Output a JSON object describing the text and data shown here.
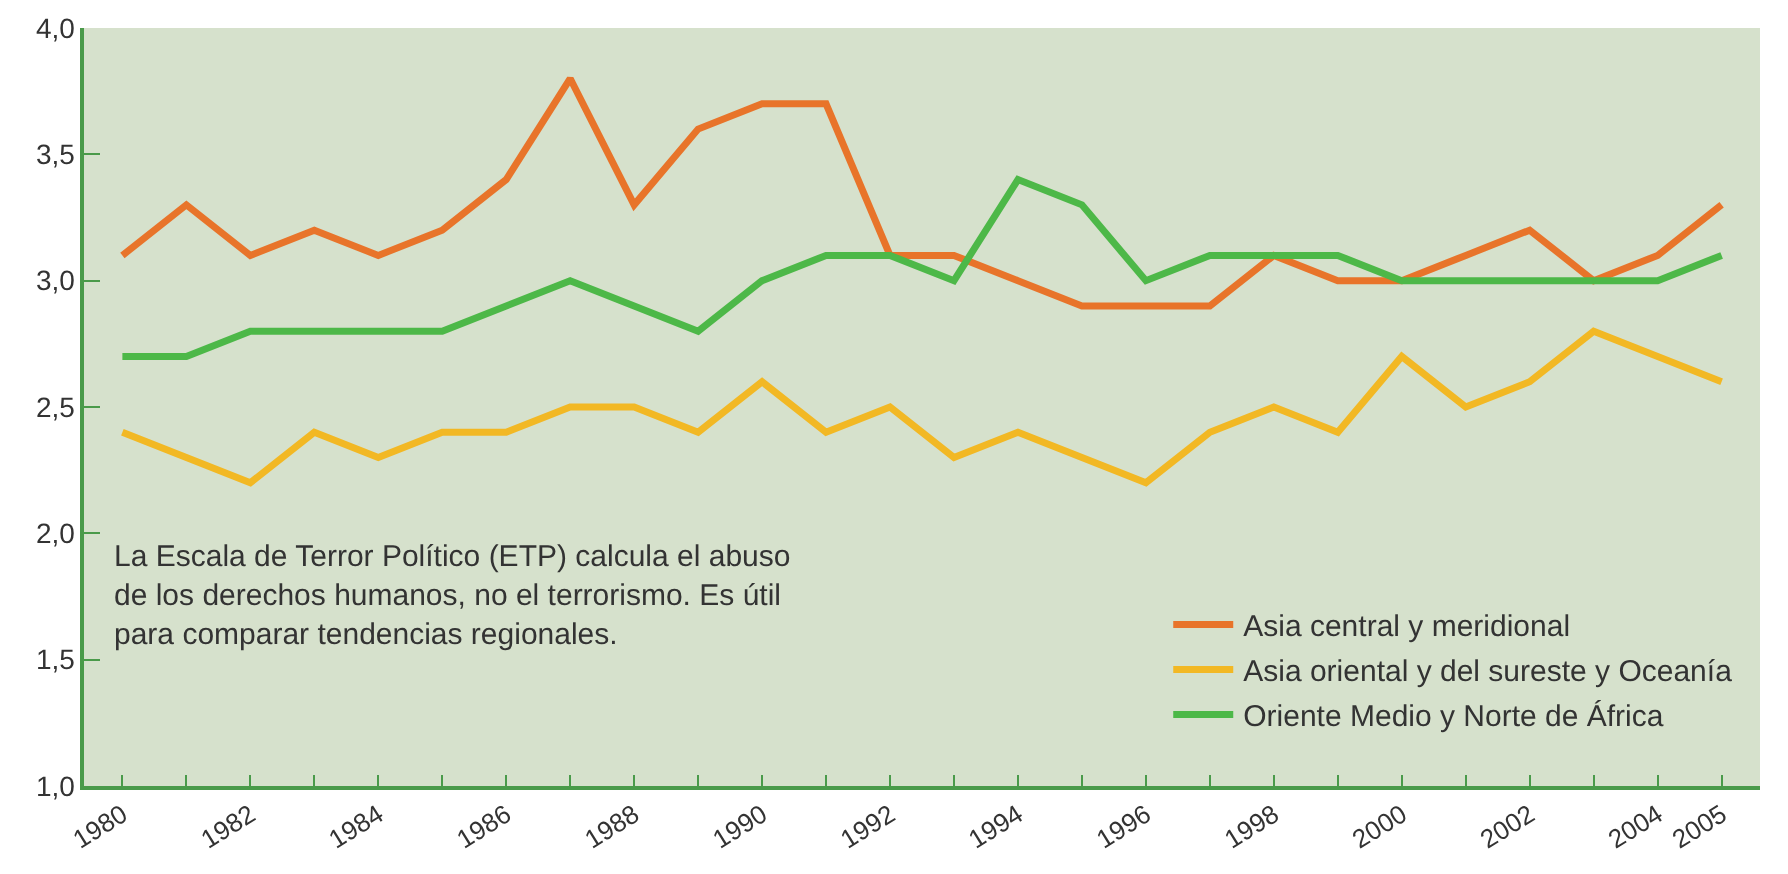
{
  "chart_data": {
    "type": "line",
    "x": [
      1980,
      1981,
      1982,
      1983,
      1984,
      1985,
      1986,
      1987,
      1988,
      1989,
      1990,
      1991,
      1992,
      1993,
      1994,
      1995,
      1996,
      1997,
      1998,
      1999,
      2000,
      2001,
      2002,
      2003,
      2004,
      2005
    ],
    "series": [
      {
        "name": "Asia central y meridional",
        "color": "#e8742a",
        "values": [
          3.1,
          3.3,
          3.1,
          3.2,
          3.1,
          3.2,
          3.4,
          3.8,
          3.3,
          3.6,
          3.7,
          3.7,
          3.1,
          3.1,
          3.0,
          2.9,
          2.9,
          2.9,
          3.1,
          3.0,
          3.0,
          3.1,
          3.2,
          3.0,
          3.1,
          3.3
        ]
      },
      {
        "name": "Asia oriental y del sureste y Oceanía",
        "color": "#f2b824",
        "values": [
          2.4,
          2.3,
          2.2,
          2.4,
          2.3,
          2.4,
          2.4,
          2.5,
          2.5,
          2.4,
          2.6,
          2.4,
          2.5,
          2.3,
          2.4,
          2.3,
          2.2,
          2.4,
          2.5,
          2.4,
          2.7,
          2.5,
          2.6,
          2.8,
          2.7,
          2.6
        ]
      },
      {
        "name": "Oriente Medio y Norte de África",
        "color": "#4db848",
        "values": [
          2.7,
          2.7,
          2.8,
          2.8,
          2.8,
          2.8,
          2.9,
          3.0,
          2.9,
          2.8,
          3.0,
          3.1,
          3.1,
          3.0,
          3.4,
          3.3,
          3.0,
          3.1,
          3.1,
          3.1,
          3.0,
          3.0,
          3.0,
          3.0,
          3.0,
          3.1
        ]
      }
    ],
    "xlim": [
      1979.4,
      2005.6
    ],
    "xticks": [
      {
        "value": 1980,
        "label": "1980"
      },
      {
        "value": 1981,
        "label": null
      },
      {
        "value": 1982,
        "label": "1982"
      },
      {
        "value": 1983,
        "label": null
      },
      {
        "value": 1984,
        "label": "1984"
      },
      {
        "value": 1985,
        "label": null
      },
      {
        "value": 1986,
        "label": "1986"
      },
      {
        "value": 1987,
        "label": null
      },
      {
        "value": 1988,
        "label": "1988"
      },
      {
        "value": 1989,
        "label": null
      },
      {
        "value": 1990,
        "label": "1990"
      },
      {
        "value": 1991,
        "label": null
      },
      {
        "value": 1992,
        "label": "1992"
      },
      {
        "value": 1993,
        "label": null
      },
      {
        "value": 1994,
        "label": "1994"
      },
      {
        "value": 1995,
        "label": null
      },
      {
        "value": 1996,
        "label": "1996"
      },
      {
        "value": 1997,
        "label": null
      },
      {
        "value": 1998,
        "label": "1998"
      },
      {
        "value": 1999,
        "label": null
      },
      {
        "value": 2000,
        "label": "2000"
      },
      {
        "value": 2001,
        "label": null
      },
      {
        "value": 2002,
        "label": "2002"
      },
      {
        "value": 2003,
        "label": null
      },
      {
        "value": 2004,
        "label": "2004"
      },
      {
        "value": 2005,
        "label": "2005"
      }
    ],
    "ylim": [
      1.0,
      4.0
    ],
    "yticks": [
      {
        "value": 1.0,
        "label": "1,0"
      },
      {
        "value": 1.5,
        "label": "1,5"
      },
      {
        "value": 2.0,
        "label": "2,0"
      },
      {
        "value": 2.5,
        "label": "2,5"
      },
      {
        "value": 3.0,
        "label": "3,0"
      },
      {
        "value": 3.5,
        "label": "3,5"
      },
      {
        "value": 4.0,
        "label": "4,0"
      }
    ],
    "annotations": [
      "La Escala de Terror Político (ETP) calcula el abuso de los derechos humanos, no el terrorismo. Es útil para comparar tendencias regionales."
    ],
    "legend": "bottom right",
    "marker": "none",
    "line_style": "solid",
    "grid": false
  }
}
